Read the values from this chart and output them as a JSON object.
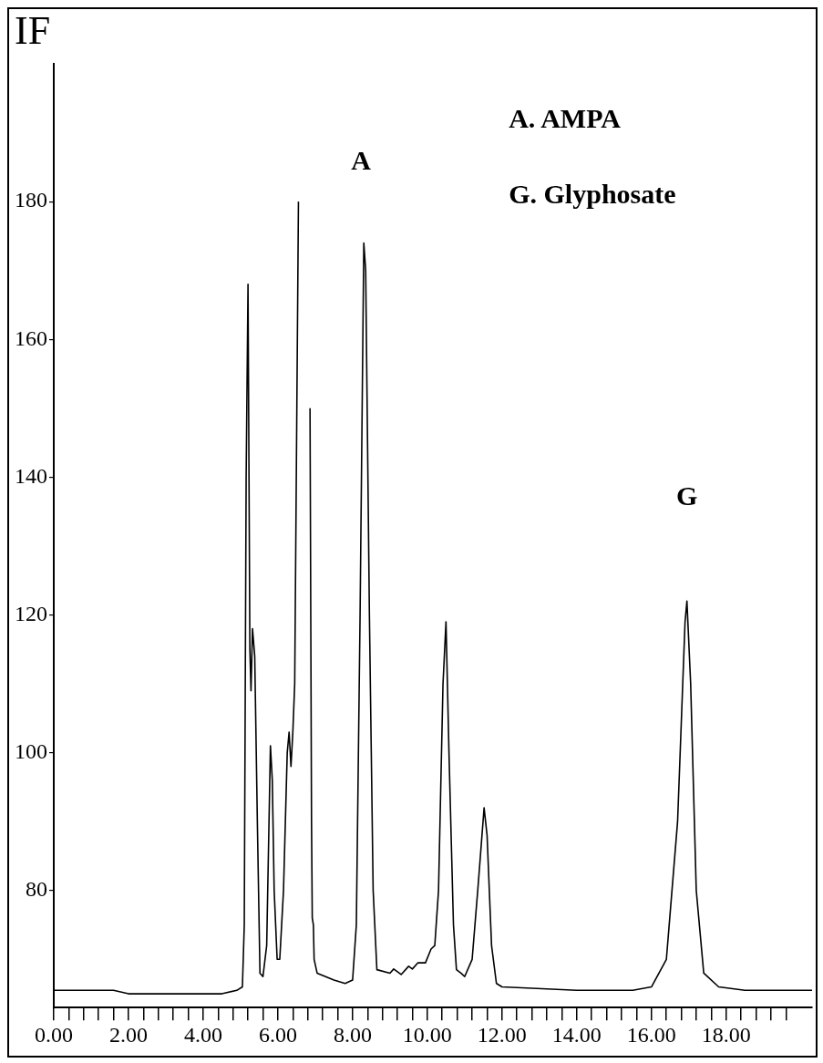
{
  "chart_data": {
    "type": "line",
    "ylabel": "IF",
    "legend": false,
    "grid": false,
    "marker": "none",
    "line_style": "solid",
    "x": [
      0,
      1.6,
      2.0,
      4.5,
      4.9,
      5.05,
      5.1,
      5.15,
      5.2,
      5.25,
      5.28,
      5.32,
      5.38,
      5.45,
      5.52,
      5.6,
      5.7,
      5.8,
      5.85,
      5.9,
      5.98,
      6.05,
      6.15,
      6.25,
      6.3,
      6.35,
      6.4,
      6.45,
      6.55,
      6.6,
      6.83,
      6.86,
      6.9,
      6.92,
      6.95,
      6.97,
      7.05,
      7.5,
      7.8,
      8.0,
      8.1,
      8.2,
      8.3,
      8.35,
      8.45,
      8.55,
      8.65,
      9.0,
      9.1,
      9.3,
      9.5,
      9.6,
      9.75,
      9.95,
      10.1,
      10.2,
      10.3,
      10.42,
      10.5,
      10.58,
      10.7,
      10.78,
      10.9,
      11.0,
      11.2,
      11.35,
      11.52,
      11.6,
      11.72,
      11.85,
      12.0,
      14.0,
      15.5,
      16.0,
      16.4,
      16.7,
      16.9,
      16.95,
      17.05,
      17.2,
      17.4,
      17.8,
      18.5,
      20.3
    ],
    "series": [
      {
        "color": "#000000",
        "values": [
          65.5,
          65.5,
          65,
          65,
          65.5,
          66,
          75,
          140,
          168,
          115,
          109,
          118,
          114,
          90,
          68,
          67.5,
          72,
          101,
          96,
          80,
          70,
          70,
          80,
          100,
          103,
          98,
          103,
          110,
          180,
          null,
          null,
          150,
          90,
          76,
          75,
          70,
          68,
          67,
          66.5,
          67,
          75,
          120,
          174,
          170,
          120,
          80,
          68.5,
          68,
          68.6,
          67.8,
          69,
          68.6,
          69.5,
          69.5,
          71.5,
          72,
          80,
          110,
          119,
          100,
          75,
          68.5,
          68,
          67.5,
          70,
          80,
          92,
          88,
          72,
          66.5,
          66,
          65.5,
          65.5,
          66,
          70,
          90,
          119,
          122,
          110,
          80,
          68,
          66,
          65.5,
          65.5
        ]
      }
    ],
    "xlim": [
      0,
      20.3
    ],
    "ylim": [
      63,
      200
    ],
    "xticks": [
      {
        "value": 0,
        "label": "0.00"
      },
      {
        "value": 0.4,
        "label": null
      },
      {
        "value": 0.8,
        "label": null
      },
      {
        "value": 1.2,
        "label": null
      },
      {
        "value": 1.6,
        "label": null
      },
      {
        "value": 2,
        "label": "2.00"
      },
      {
        "value": 2.4,
        "label": null
      },
      {
        "value": 2.8,
        "label": null
      },
      {
        "value": 3.2,
        "label": null
      },
      {
        "value": 3.6,
        "label": null
      },
      {
        "value": 4,
        "label": "4.00"
      },
      {
        "value": 4.4,
        "label": null
      },
      {
        "value": 4.8,
        "label": null
      },
      {
        "value": 5.2,
        "label": null
      },
      {
        "value": 5.6,
        "label": null
      },
      {
        "value": 6,
        "label": "6.00"
      },
      {
        "value": 6.4,
        "label": null
      },
      {
        "value": 6.8,
        "label": null
      },
      {
        "value": 7.2,
        "label": null
      },
      {
        "value": 7.6,
        "label": null
      },
      {
        "value": 8,
        "label": "8.00"
      },
      {
        "value": 8.4,
        "label": null
      },
      {
        "value": 8.8,
        "label": null
      },
      {
        "value": 9.2,
        "label": null
      },
      {
        "value": 9.6,
        "label": null
      },
      {
        "value": 10,
        "label": "10.00"
      },
      {
        "value": 10.4,
        "label": null
      },
      {
        "value": 10.8,
        "label": null
      },
      {
        "value": 11.2,
        "label": null
      },
      {
        "value": 11.6,
        "label": null
      },
      {
        "value": 12,
        "label": "12.00"
      },
      {
        "value": 12.4,
        "label": null
      },
      {
        "value": 12.8,
        "label": null
      },
      {
        "value": 13.2,
        "label": null
      },
      {
        "value": 13.6,
        "label": null
      },
      {
        "value": 14,
        "label": "14.00"
      },
      {
        "value": 14.4,
        "label": null
      },
      {
        "value": 14.8,
        "label": null
      },
      {
        "value": 15.2,
        "label": null
      },
      {
        "value": 15.6,
        "label": null
      },
      {
        "value": 16,
        "label": "16.00"
      },
      {
        "value": 16.4,
        "label": null
      },
      {
        "value": 16.8,
        "label": null
      },
      {
        "value": 17.2,
        "label": null
      },
      {
        "value": 17.6,
        "label": null
      },
      {
        "value": 18,
        "label": "18.00"
      },
      {
        "value": 18.4,
        "label": null
      },
      {
        "value": 18.8,
        "label": null
      },
      {
        "value": 19.2,
        "label": null
      },
      {
        "value": 19.6,
        "label": null
      }
    ],
    "yticks": [
      80,
      100,
      120,
      140,
      160,
      180
    ],
    "annotations": [
      "A",
      "G",
      "A. AMPA",
      "G. Glyphosate"
    ]
  }
}
